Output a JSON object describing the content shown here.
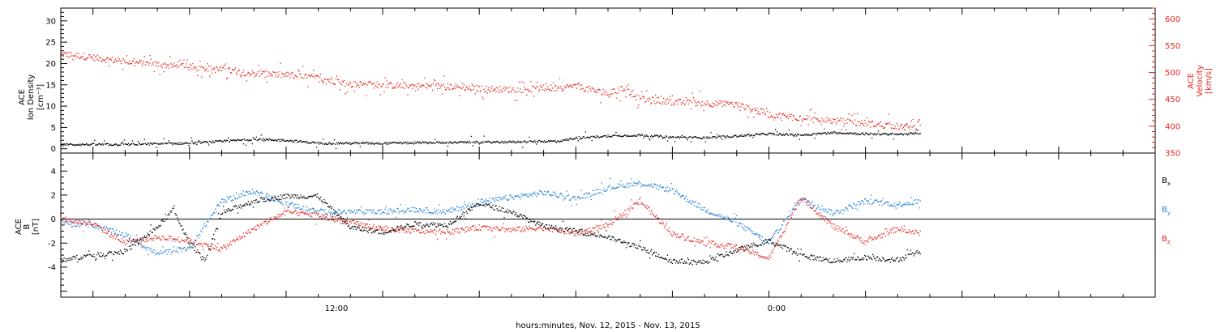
{
  "chart_data": [
    {
      "type": "scatter",
      "panel": "top",
      "title": "",
      "xlabel": "hours:minutes, Nov. 12, 2015 - Nov. 13, 2015",
      "x_unit": "hours since Nov. 12, 2015 00:00",
      "xlim": [
        2,
        36
      ],
      "x_tick_labels": [
        "12:00",
        "0:00"
      ],
      "x_tick_label_values": [
        12,
        24
      ],
      "left_axis": {
        "label_lines": [
          "ACE",
          "Ion Density",
          "[cm⁻³]"
        ],
        "ylim": [
          -1,
          33
        ],
        "tick_labels": [
          "0",
          "5",
          "10",
          "15",
          "20",
          "25",
          "30"
        ],
        "tick_values": [
          0,
          5,
          10,
          15,
          20,
          25,
          30
        ],
        "color": "#000000"
      },
      "right_axis": {
        "label_lines": [
          "ACE",
          "Velocity",
          "[km/s]"
        ],
        "ylim": [
          350,
          620
        ],
        "tick_labels": [
          "350",
          "400",
          "450",
          "500",
          "550",
          "600"
        ],
        "tick_values": [
          350,
          400,
          450,
          500,
          550,
          600
        ],
        "color": "#e8231d"
      },
      "grid": false,
      "series": [
        {
          "axis": "left",
          "color": "#000000",
          "x": [
            2.0,
            4.0,
            6.0,
            8.0,
            9.0,
            10.0,
            12.0,
            14.0,
            16.0,
            17.5,
            18.0,
            19.0,
            20.0,
            21.0,
            22.0,
            23.0,
            24.0,
            25.0,
            26.0,
            27.0,
            28.0,
            28.7
          ],
          "y": [
            1.0,
            1.0,
            1.3,
            2.2,
            2.0,
            1.3,
            1.3,
            1.5,
            1.6,
            1.8,
            2.5,
            3.0,
            3.2,
            2.7,
            2.6,
            3.0,
            3.5,
            3.2,
            3.8,
            3.5,
            3.4,
            3.6
          ]
        },
        {
          "axis": "right",
          "color": "#e8231d",
          "x": [
            2.0,
            3.0,
            4.0,
            5.0,
            6.0,
            7.0,
            8.0,
            9.0,
            10.0,
            11.0,
            12.0,
            13.0,
            14.0,
            15.0,
            16.0,
            17.0,
            18.0,
            19.0,
            19.5,
            20.0,
            21.0,
            22.0,
            23.0,
            24.0,
            25.0,
            26.0,
            27.0,
            28.0,
            28.7
          ],
          "y": [
            535,
            528,
            520,
            515,
            510,
            505,
            498,
            495,
            490,
            478,
            476,
            475,
            474,
            470,
            468,
            470,
            474,
            460,
            470,
            450,
            445,
            443,
            440,
            422,
            415,
            410,
            405,
            400,
            398
          ]
        }
      ]
    },
    {
      "type": "scatter",
      "panel": "bottom",
      "title": "",
      "xlabel": "hours:minutes, Nov. 12, 2015 - Nov. 13, 2015",
      "x_unit": "hours since Nov. 12, 2015 00:00",
      "xlim": [
        2,
        36
      ],
      "left_axis": {
        "label_lines": [
          "ACE",
          "B",
          "[nT]"
        ],
        "ylim": [
          -6.5,
          5.5
        ],
        "tick_labels": [
          "-4",
          "-2",
          "0",
          "2",
          "4"
        ],
        "tick_values": [
          -4,
          -2,
          0,
          2,
          4
        ],
        "color": "#000000"
      },
      "zero_line": true,
      "grid": false,
      "legend_position": "right",
      "series": [
        {
          "name_main": "B",
          "name_sub": "x",
          "color": "#000000",
          "x": [
            2.0,
            3.0,
            4.0,
            5.0,
            5.5,
            6.0,
            6.5,
            7.0,
            8.0,
            9.0,
            10.0,
            11.0,
            12.0,
            13.0,
            14.0,
            15.0,
            16.0,
            17.0,
            18.0,
            19.0,
            20.0,
            21.0,
            22.0,
            23.0,
            24.0,
            25.0,
            26.0,
            27.0,
            28.0,
            28.7
          ],
          "y": [
            -3.4,
            -3.0,
            -2.7,
            -0.7,
            0.8,
            -2.0,
            -3.4,
            0.5,
            1.5,
            1.9,
            1.9,
            -0.7,
            -1.1,
            -0.4,
            -0.5,
            1.3,
            0.6,
            -0.6,
            -1.0,
            -1.5,
            -2.4,
            -3.5,
            -3.6,
            -2.6,
            -1.8,
            -3.0,
            -3.5,
            -3.2,
            -3.4,
            -2.7
          ]
        },
        {
          "name_main": "B",
          "name_sub": "y",
          "color": "#1f7fd8",
          "x": [
            2.0,
            3.0,
            4.0,
            5.0,
            6.0,
            7.0,
            8.0,
            9.0,
            10.0,
            11.0,
            12.0,
            13.0,
            14.0,
            15.0,
            16.0,
            17.0,
            18.0,
            19.0,
            20.0,
            21.0,
            22.0,
            23.0,
            24.0,
            25.0,
            26.0,
            27.0,
            28.0,
            28.7
          ],
          "y": [
            -0.3,
            -0.5,
            -1.3,
            -2.9,
            -2.4,
            1.5,
            2.3,
            1.3,
            0.6,
            0.6,
            0.6,
            0.8,
            0.6,
            1.4,
            1.8,
            2.2,
            1.7,
            2.6,
            3.0,
            2.4,
            0.8,
            -0.3,
            -2.0,
            1.7,
            0.5,
            1.5,
            1.2,
            1.5
          ]
        },
        {
          "name_main": "B",
          "name_sub": "z",
          "color": "#e8231d",
          "x": [
            2.0,
            3.0,
            4.0,
            5.0,
            6.0,
            7.0,
            8.0,
            9.0,
            10.0,
            11.0,
            12.0,
            13.0,
            14.0,
            15.0,
            16.0,
            17.0,
            18.0,
            19.0,
            20.0,
            21.0,
            22.0,
            23.0,
            24.0,
            25.0,
            26.0,
            27.0,
            28.0,
            28.7
          ],
          "y": [
            0.0,
            -0.4,
            -2.0,
            -1.5,
            -1.8,
            -2.5,
            -0.8,
            0.6,
            0.3,
            -0.3,
            -0.8,
            -1.0,
            -1.1,
            -0.7,
            -0.9,
            -0.7,
            -1.2,
            -0.5,
            1.5,
            -1.2,
            -2.0,
            -2.3,
            -3.3,
            1.8,
            -0.6,
            -1.9,
            -0.8,
            -1.2
          ]
        }
      ]
    }
  ]
}
